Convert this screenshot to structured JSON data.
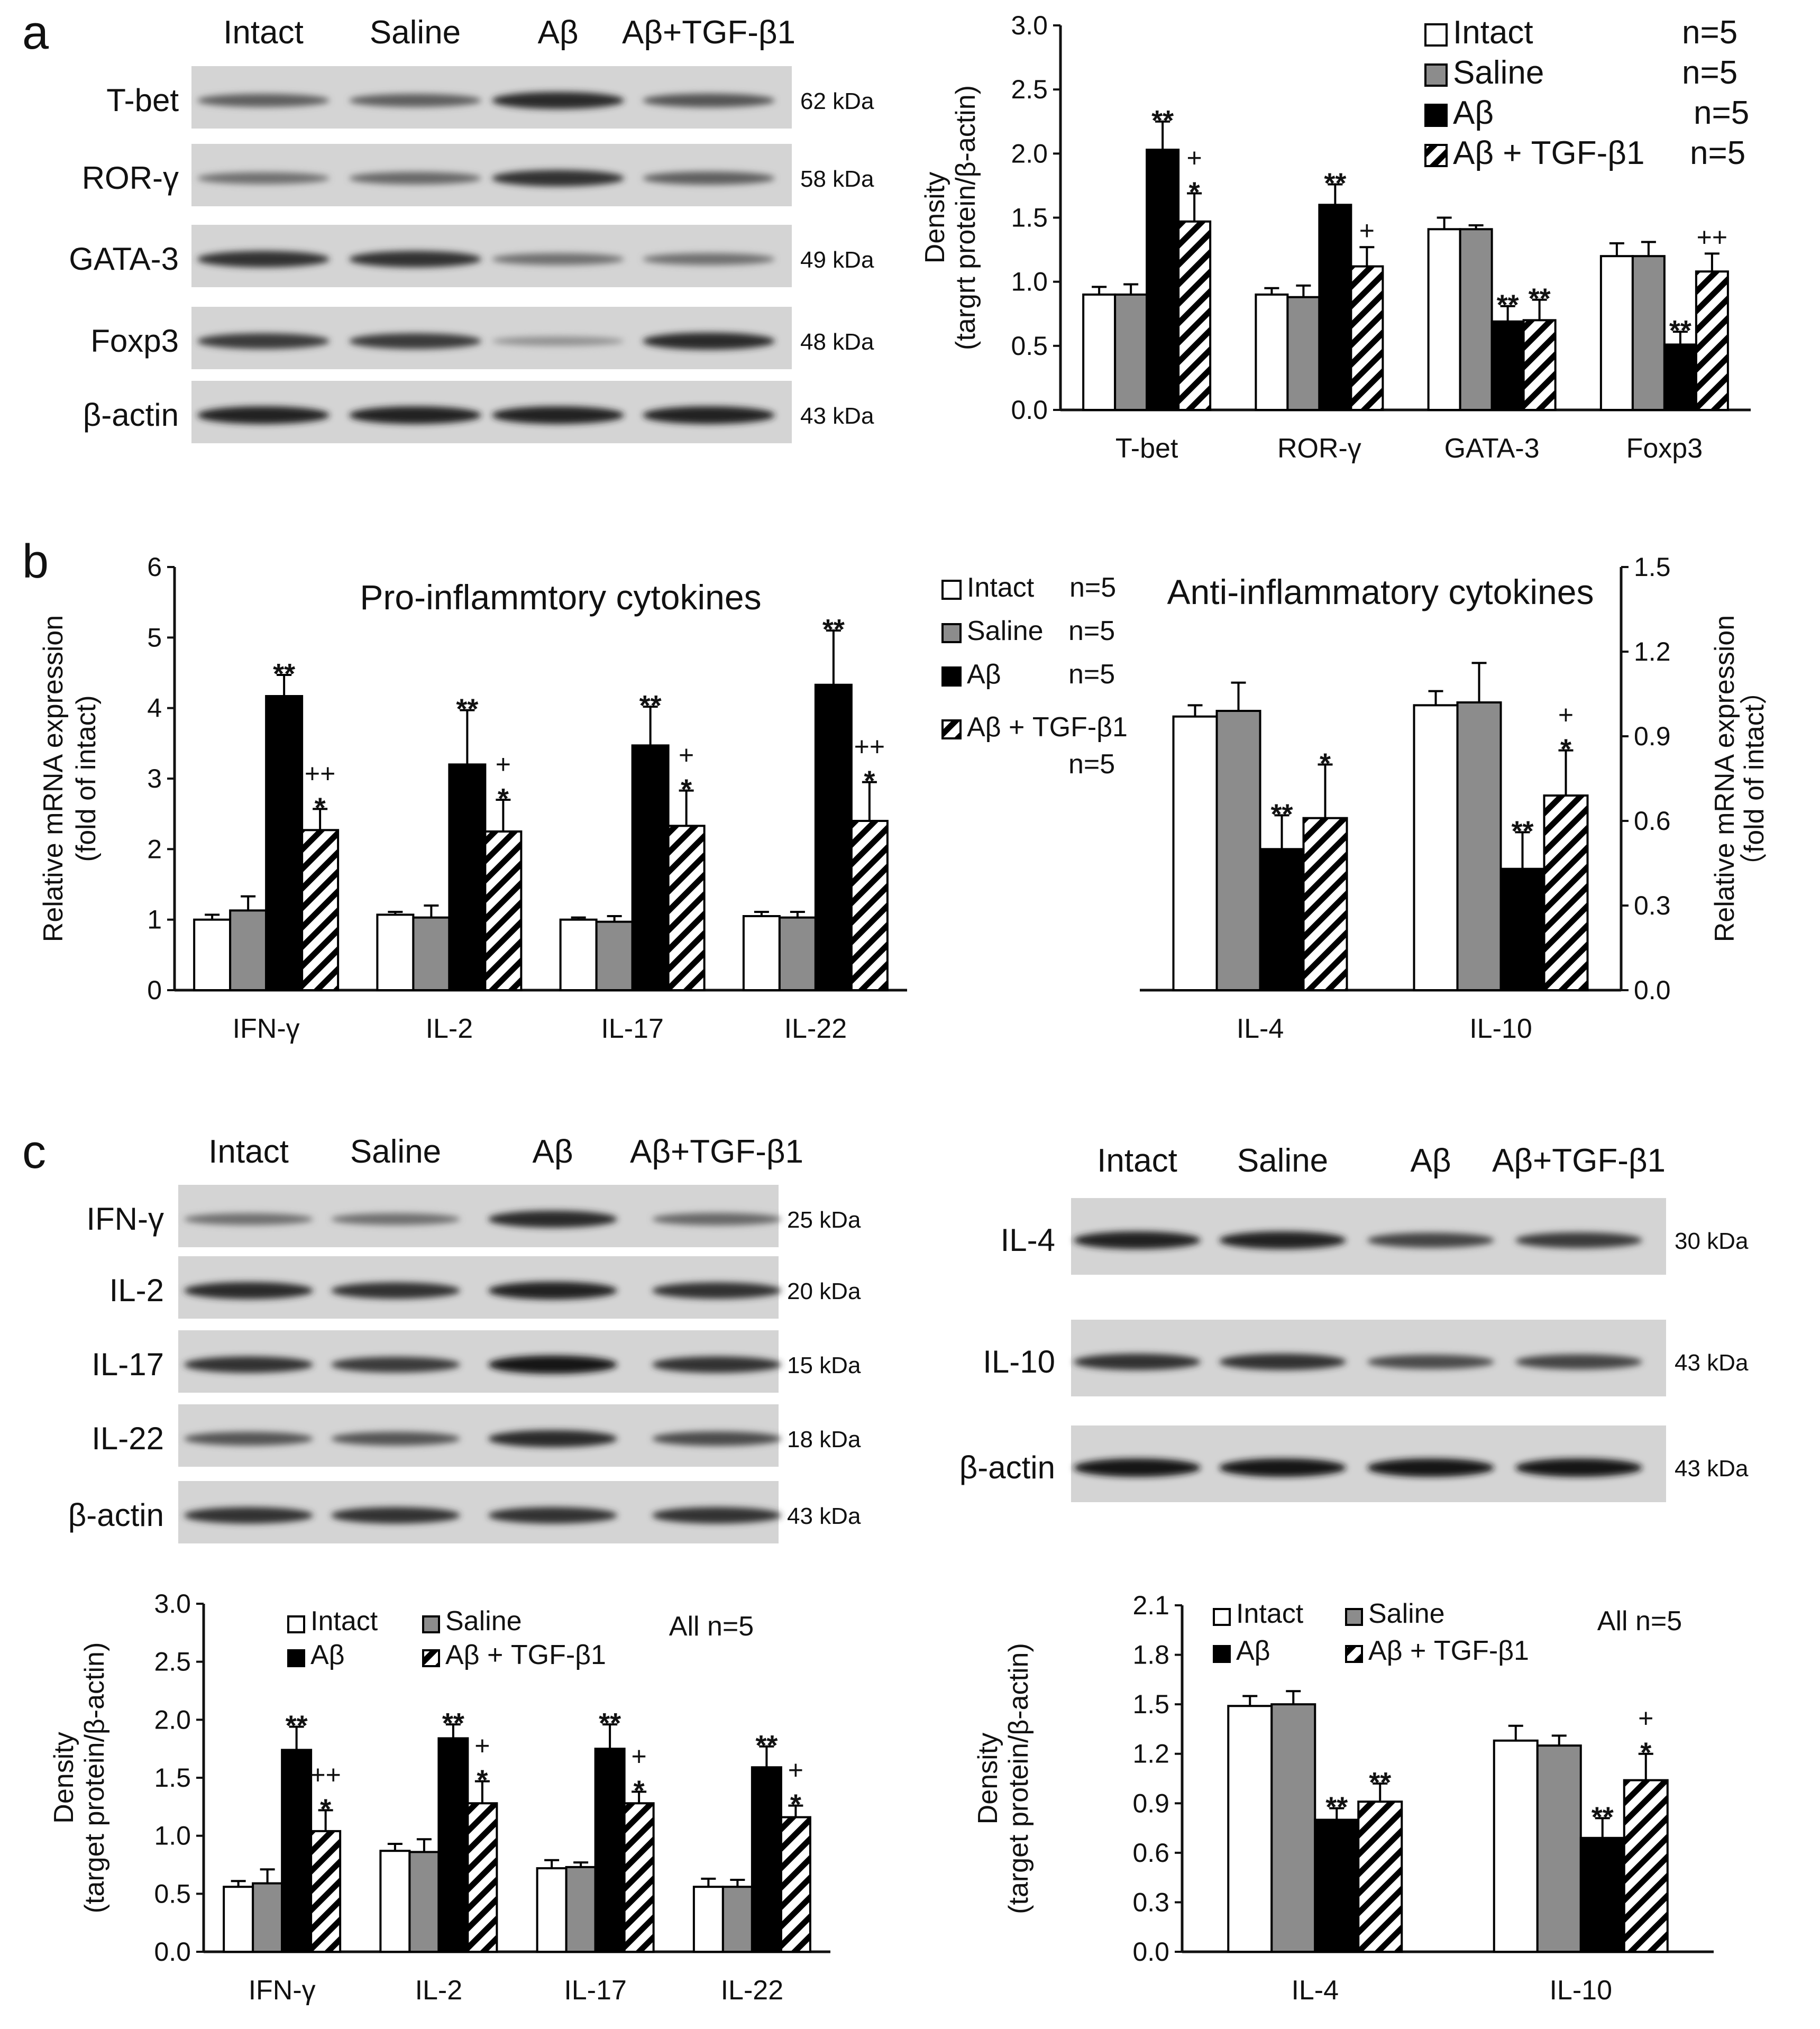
{
  "panels": {
    "a": "a",
    "b": "b",
    "c": "c"
  },
  "lanes": [
    "Intact",
    "Saline",
    "Aβ",
    "Aβ+TGF-β1"
  ],
  "blot_a": {
    "rows": [
      {
        "protein": "T-bet",
        "kda": "62 kDa",
        "intensity": [
          0.55,
          0.55,
          0.85,
          0.6
        ]
      },
      {
        "protein": "ROR-γ",
        "kda": "58 kDa",
        "intensity": [
          0.45,
          0.5,
          0.8,
          0.55
        ]
      },
      {
        "protein": "GATA-3",
        "kda": "49 kDa",
        "intensity": [
          0.8,
          0.8,
          0.45,
          0.45
        ]
      },
      {
        "protein": "Foxp3",
        "kda": "48 kDa",
        "intensity": [
          0.75,
          0.75,
          0.25,
          0.85
        ]
      },
      {
        "protein": "β-actin",
        "kda": "43 kDa",
        "intensity": [
          0.9,
          0.9,
          0.9,
          0.9
        ]
      }
    ]
  },
  "blot_c_left": {
    "rows": [
      {
        "protein": "IFN-γ",
        "kda": "25 kDa",
        "intensity": [
          0.45,
          0.45,
          0.85,
          0.5
        ]
      },
      {
        "protein": "IL-2",
        "kda": "20 kDa",
        "intensity": [
          0.85,
          0.8,
          0.9,
          0.8
        ]
      },
      {
        "protein": "IL-17",
        "kda": "15 kDa",
        "intensity": [
          0.8,
          0.75,
          0.95,
          0.8
        ]
      },
      {
        "protein": "IL-22",
        "kda": "18 kDa",
        "intensity": [
          0.6,
          0.6,
          0.85,
          0.65
        ]
      },
      {
        "protein": "β-actin",
        "kda": "43 kDa",
        "intensity": [
          0.8,
          0.8,
          0.8,
          0.8
        ]
      }
    ]
  },
  "blot_c_right": {
    "rows": [
      {
        "protein": "IL-4",
        "kda": "30 kDa",
        "intensity": [
          0.9,
          0.9,
          0.7,
          0.75
        ]
      },
      {
        "protein": "IL-10",
        "kda": "43 kDa",
        "intensity": [
          0.8,
          0.8,
          0.65,
          0.7
        ]
      },
      {
        "protein": "β-actin",
        "kda": "43 kDa",
        "intensity": [
          0.95,
          0.95,
          0.95,
          0.95
        ]
      }
    ]
  },
  "colors": {
    "intact": "#ffffff",
    "saline": "#8c8c8c",
    "abeta": "#000000",
    "hatch": "#000000",
    "axis": "#111111"
  },
  "chart_data": [
    {
      "id": "a",
      "type": "bar",
      "title": "",
      "ylabel": "Density",
      "ylabel2": "(targrt protein/β-actin)",
      "ylim": [
        0,
        3.0
      ],
      "yticks": [
        "0.0",
        "0.5",
        "1.0",
        "1.5",
        "2.0",
        "2.5",
        "3.0"
      ],
      "categories": [
        "T-bet",
        "ROR-γ",
        "GATA-3",
        "Foxp3"
      ],
      "series": [
        {
          "name": "Intact",
          "n": "n=5",
          "values": [
            0.9,
            0.9,
            1.41,
            1.2
          ],
          "err": [
            0.06,
            0.05,
            0.09,
            0.1
          ]
        },
        {
          "name": "Saline",
          "n": "n=5",
          "values": [
            0.9,
            0.88,
            1.41,
            1.2
          ],
          "err": [
            0.08,
            0.09,
            0.03,
            0.11
          ]
        },
        {
          "name": "Aβ",
          "n": "n=5",
          "values": [
            2.03,
            1.6,
            0.69,
            0.51
          ],
          "err": [
            0.22,
            0.16,
            0.12,
            0.1
          ]
        },
        {
          "name": "Aβ + TGF-β1",
          "n": "n=5",
          "values": [
            1.47,
            1.12,
            0.7,
            1.08
          ],
          "err": [
            0.22,
            0.15,
            0.16,
            0.14
          ]
        }
      ],
      "annotations": [
        {
          "cat": 0,
          "series": 2,
          "lines": [
            "**"
          ]
        },
        {
          "cat": 0,
          "series": 3,
          "lines": [
            "+",
            "*"
          ]
        },
        {
          "cat": 1,
          "series": 2,
          "lines": [
            "**"
          ]
        },
        {
          "cat": 1,
          "series": 3,
          "lines": [
            "+"
          ]
        },
        {
          "cat": 2,
          "series": 2,
          "lines": [
            "**"
          ]
        },
        {
          "cat": 2,
          "series": 3,
          "lines": [
            "**"
          ]
        },
        {
          "cat": 3,
          "series": 2,
          "lines": [
            "**"
          ]
        },
        {
          "cat": 3,
          "series": 3,
          "lines": [
            "++"
          ]
        }
      ]
    },
    {
      "id": "b-left",
      "type": "bar",
      "title": "Pro-inflammtory cytokines",
      "ylabel": "Relative mRNA expression",
      "ylabel2": "(fold of intact)",
      "ylim": [
        0,
        6
      ],
      "yticks": [
        "0",
        "1",
        "2",
        "3",
        "4",
        "5",
        "6"
      ],
      "categories": [
        "IFN-γ",
        "IL-2",
        "IL-17",
        "IL-22"
      ],
      "series": [
        {
          "name": "Intact",
          "n": "n=5",
          "values": [
            1.0,
            1.07,
            1.0,
            1.05
          ],
          "err": [
            0.07,
            0.04,
            0.03,
            0.06
          ]
        },
        {
          "name": "Saline",
          "n": "n=5",
          "values": [
            1.13,
            1.03,
            0.97,
            1.03
          ],
          "err": [
            0.2,
            0.17,
            0.08,
            0.08
          ]
        },
        {
          "name": "Aβ",
          "n": "n=5",
          "values": [
            4.17,
            3.2,
            3.47,
            4.33
          ],
          "err": [
            0.3,
            0.77,
            0.55,
            0.77
          ]
        },
        {
          "name": "Aβ + TGF-β1",
          "n": "n=5",
          "values": [
            2.27,
            2.25,
            2.33,
            2.4
          ],
          "err": [
            0.3,
            0.45,
            0.5,
            0.55
          ]
        }
      ],
      "annotations": [
        {
          "cat": 0,
          "series": 2,
          "lines": [
            "**"
          ]
        },
        {
          "cat": 0,
          "series": 3,
          "lines": [
            "++",
            "*"
          ]
        },
        {
          "cat": 1,
          "series": 2,
          "lines": [
            "**"
          ]
        },
        {
          "cat": 1,
          "series": 3,
          "lines": [
            "+",
            "*"
          ]
        },
        {
          "cat": 2,
          "series": 2,
          "lines": [
            "**"
          ]
        },
        {
          "cat": 2,
          "series": 3,
          "lines": [
            "+",
            "*"
          ]
        },
        {
          "cat": 3,
          "series": 2,
          "lines": [
            "**"
          ]
        },
        {
          "cat": 3,
          "series": 3,
          "lines": [
            "++",
            "*"
          ]
        }
      ]
    },
    {
      "id": "b-right",
      "type": "bar",
      "title": "Anti-inflammatory cytokines",
      "ylabel": "Relative mRNA expression",
      "ylabel2": "（fold of intact）",
      "ylim": [
        0,
        1.5
      ],
      "yticks": [
        "0.0",
        "0.3",
        "0.6",
        "0.9",
        "1.2",
        "1.5"
      ],
      "categories": [
        "IL-4",
        "IL-10"
      ],
      "series": [
        {
          "name": "Intact",
          "values": [
            0.97,
            1.01
          ],
          "err": [
            0.04,
            0.05
          ]
        },
        {
          "name": "Saline",
          "values": [
            0.99,
            1.02
          ],
          "err": [
            0.1,
            0.14
          ]
        },
        {
          "name": "Aβ",
          "values": [
            0.5,
            0.43
          ],
          "err": [
            0.12,
            0.13
          ]
        },
        {
          "name": "Aβ + TGF-β1",
          "values": [
            0.61,
            0.69
          ],
          "err": [
            0.19,
            0.16
          ]
        }
      ],
      "annotations": [
        {
          "cat": 0,
          "series": 2,
          "lines": [
            "**"
          ]
        },
        {
          "cat": 0,
          "series": 3,
          "lines": [
            "*"
          ]
        },
        {
          "cat": 1,
          "series": 2,
          "lines": [
            "**"
          ]
        },
        {
          "cat": 1,
          "series": 3,
          "lines": [
            "+",
            "*"
          ]
        }
      ]
    },
    {
      "id": "c-left",
      "type": "bar",
      "title": "All n=5",
      "ylabel": "Density",
      "ylabel2": "(target protein/β-actin)",
      "ylim": [
        0,
        3.0
      ],
      "yticks": [
        "0.0",
        "0.5",
        "1.0",
        "1.5",
        "2.0",
        "2.5",
        "3.0"
      ],
      "categories": [
        "IFN-γ",
        "IL-2",
        "IL-17",
        "IL-22"
      ],
      "series": [
        {
          "name": "Intact",
          "values": [
            0.56,
            0.87,
            0.72,
            0.56
          ],
          "err": [
            0.05,
            0.06,
            0.07,
            0.07
          ]
        },
        {
          "name": "Saline",
          "values": [
            0.59,
            0.86,
            0.73,
            0.56
          ],
          "err": [
            0.12,
            0.11,
            0.04,
            0.06
          ]
        },
        {
          "name": "Aβ",
          "values": [
            1.74,
            1.84,
            1.75,
            1.59
          ],
          "err": [
            0.2,
            0.12,
            0.21,
            0.18
          ]
        },
        {
          "name": "Aβ + TGF-β1",
          "values": [
            1.04,
            1.28,
            1.28,
            1.16
          ],
          "err": [
            0.18,
            0.19,
            0.1,
            0.1
          ]
        }
      ],
      "annotations": [
        {
          "cat": 0,
          "series": 2,
          "lines": [
            "**"
          ]
        },
        {
          "cat": 0,
          "series": 3,
          "lines": [
            "++",
            "*"
          ]
        },
        {
          "cat": 1,
          "series": 2,
          "lines": [
            "**"
          ]
        },
        {
          "cat": 1,
          "series": 3,
          "lines": [
            "+",
            "*"
          ]
        },
        {
          "cat": 2,
          "series": 2,
          "lines": [
            "**"
          ]
        },
        {
          "cat": 2,
          "series": 3,
          "lines": [
            "+",
            "*"
          ]
        },
        {
          "cat": 3,
          "series": 2,
          "lines": [
            "**"
          ]
        },
        {
          "cat": 3,
          "series": 3,
          "lines": [
            "+",
            "*"
          ]
        }
      ]
    },
    {
      "id": "c-right",
      "type": "bar",
      "title": "All n=5",
      "ylabel": "Density",
      "ylabel2": "(target protein/β-actin)",
      "ylim": [
        0,
        2.1
      ],
      "yticks": [
        "0.0",
        "0.3",
        "0.6",
        "0.9",
        "1.2",
        "1.5",
        "1.8",
        "2.1"
      ],
      "categories": [
        "IL-4",
        "IL-10"
      ],
      "series": [
        {
          "name": "Intact",
          "values": [
            1.49,
            1.28
          ],
          "err": [
            0.06,
            0.09
          ]
        },
        {
          "name": "Saline",
          "values": [
            1.5,
            1.25
          ],
          "err": [
            0.08,
            0.06
          ]
        },
        {
          "name": "Aβ",
          "values": [
            0.8,
            0.69
          ],
          "err": [
            0.07,
            0.12
          ]
        },
        {
          "name": "Aβ + TGF-β1",
          "values": [
            0.91,
            1.04
          ],
          "err": [
            0.11,
            0.16
          ]
        }
      ],
      "annotations": [
        {
          "cat": 0,
          "series": 2,
          "lines": [
            "**"
          ]
        },
        {
          "cat": 0,
          "series": 3,
          "lines": [
            "**"
          ]
        },
        {
          "cat": 1,
          "series": 2,
          "lines": [
            "**"
          ]
        },
        {
          "cat": 1,
          "series": 3,
          "lines": [
            "+",
            "*"
          ]
        }
      ]
    }
  ]
}
